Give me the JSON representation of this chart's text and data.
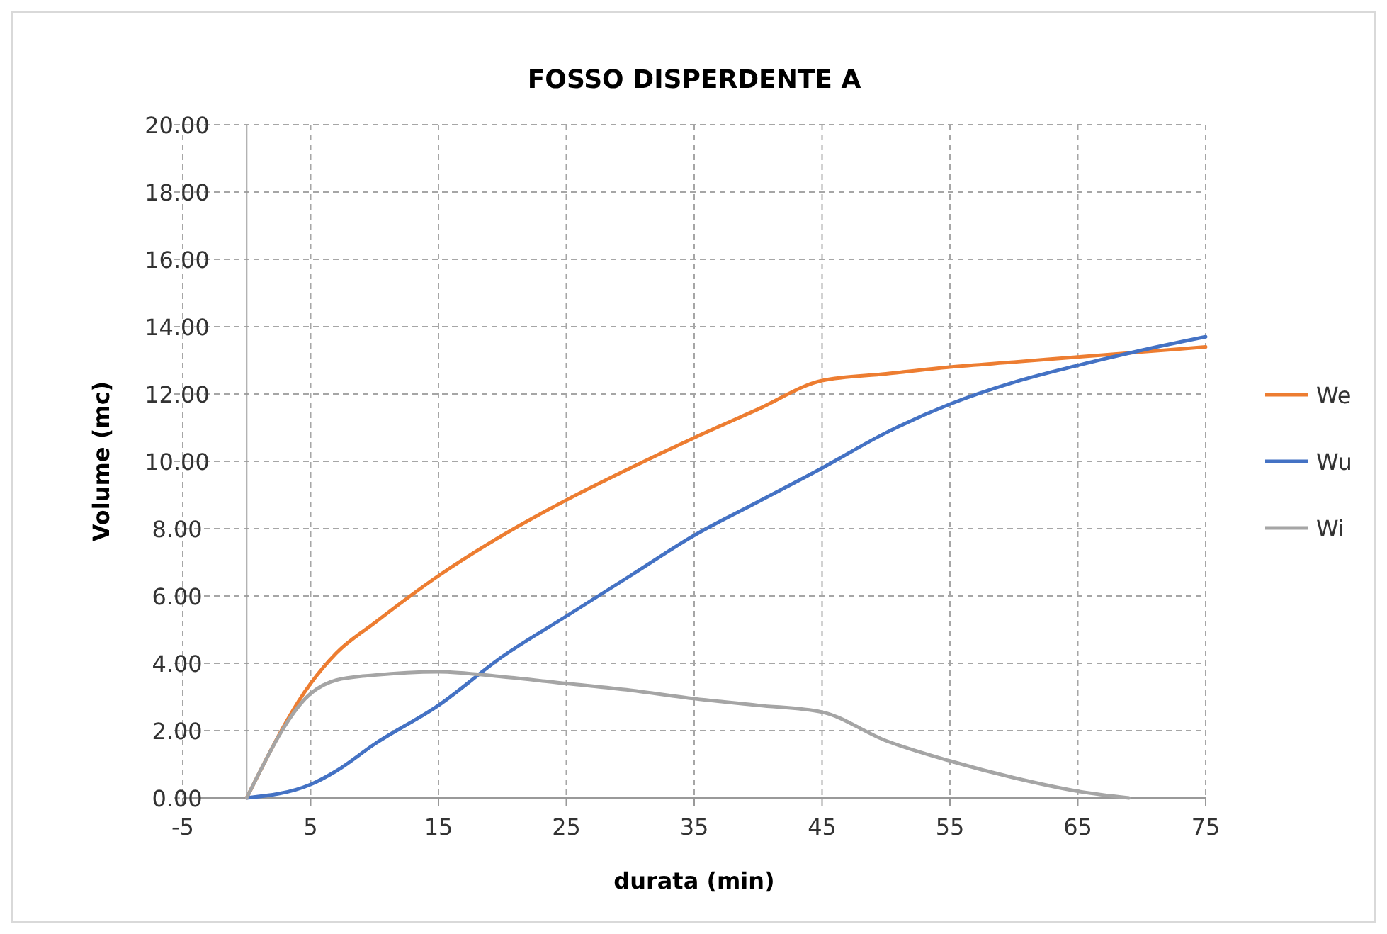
{
  "chart_data": {
    "type": "line",
    "title": "FOSSO DISPERDENTE A",
    "xlabel": "durata (min)",
    "ylabel": "Volume (mc)",
    "xlim": [
      -5,
      75
    ],
    "xticks": [
      -5,
      5,
      15,
      25,
      35,
      45,
      55,
      65,
      75
    ],
    "ylim": [
      0,
      20
    ],
    "yticks": [
      {
        "value": 0,
        "label": "0.00"
      },
      {
        "value": 2,
        "label": "2.00"
      },
      {
        "value": 4,
        "label": "4.00"
      },
      {
        "value": 6,
        "label": "6.00"
      },
      {
        "value": 8,
        "label": "8.00"
      },
      {
        "value": 10,
        "label": "10.00"
      },
      {
        "value": 12,
        "label": "12.00"
      },
      {
        "value": 14,
        "label": "14.00"
      },
      {
        "value": 16,
        "label": "16.00"
      },
      {
        "value": 18,
        "label": "18.00"
      },
      {
        "value": 20,
        "label": "20.00"
      }
    ],
    "grid": true,
    "legend": "right",
    "marker": "none",
    "line_style": "solid",
    "series": [
      {
        "name": "We",
        "color": "#ed7d31",
        "x": [
          0,
          5,
          7,
          10,
          15,
          20,
          25,
          30,
          35,
          40,
          45,
          50,
          55,
          60,
          65,
          70,
          75
        ],
        "values": [
          0,
          3.4,
          4.3,
          5.2,
          6.6,
          7.8,
          8.85,
          9.8,
          10.7,
          11.55,
          12.4,
          12.6,
          12.8,
          12.95,
          13.1,
          13.25,
          13.4
        ]
      },
      {
        "name": "Wu",
        "color": "#4472c4",
        "x": [
          0,
          5,
          7,
          10,
          15,
          20,
          25,
          30,
          35,
          40,
          45,
          50,
          55,
          60,
          65,
          70,
          75
        ],
        "values": [
          0,
          0.4,
          0.8,
          1.6,
          2.75,
          4.2,
          5.4,
          6.6,
          7.8,
          8.8,
          9.8,
          10.85,
          11.7,
          12.35,
          12.85,
          13.3,
          13.7
        ]
      },
      {
        "name": "Wi",
        "color": "#a5a5a5",
        "x": [
          0,
          5,
          7,
          10,
          15,
          20,
          25,
          30,
          35,
          40,
          45,
          50,
          55,
          60,
          65,
          69
        ],
        "values": [
          0,
          3.1,
          3.5,
          3.65,
          3.75,
          3.6,
          3.4,
          3.2,
          2.95,
          2.75,
          2.55,
          1.7,
          1.1,
          0.6,
          0.2,
          0
        ]
      }
    ]
  }
}
